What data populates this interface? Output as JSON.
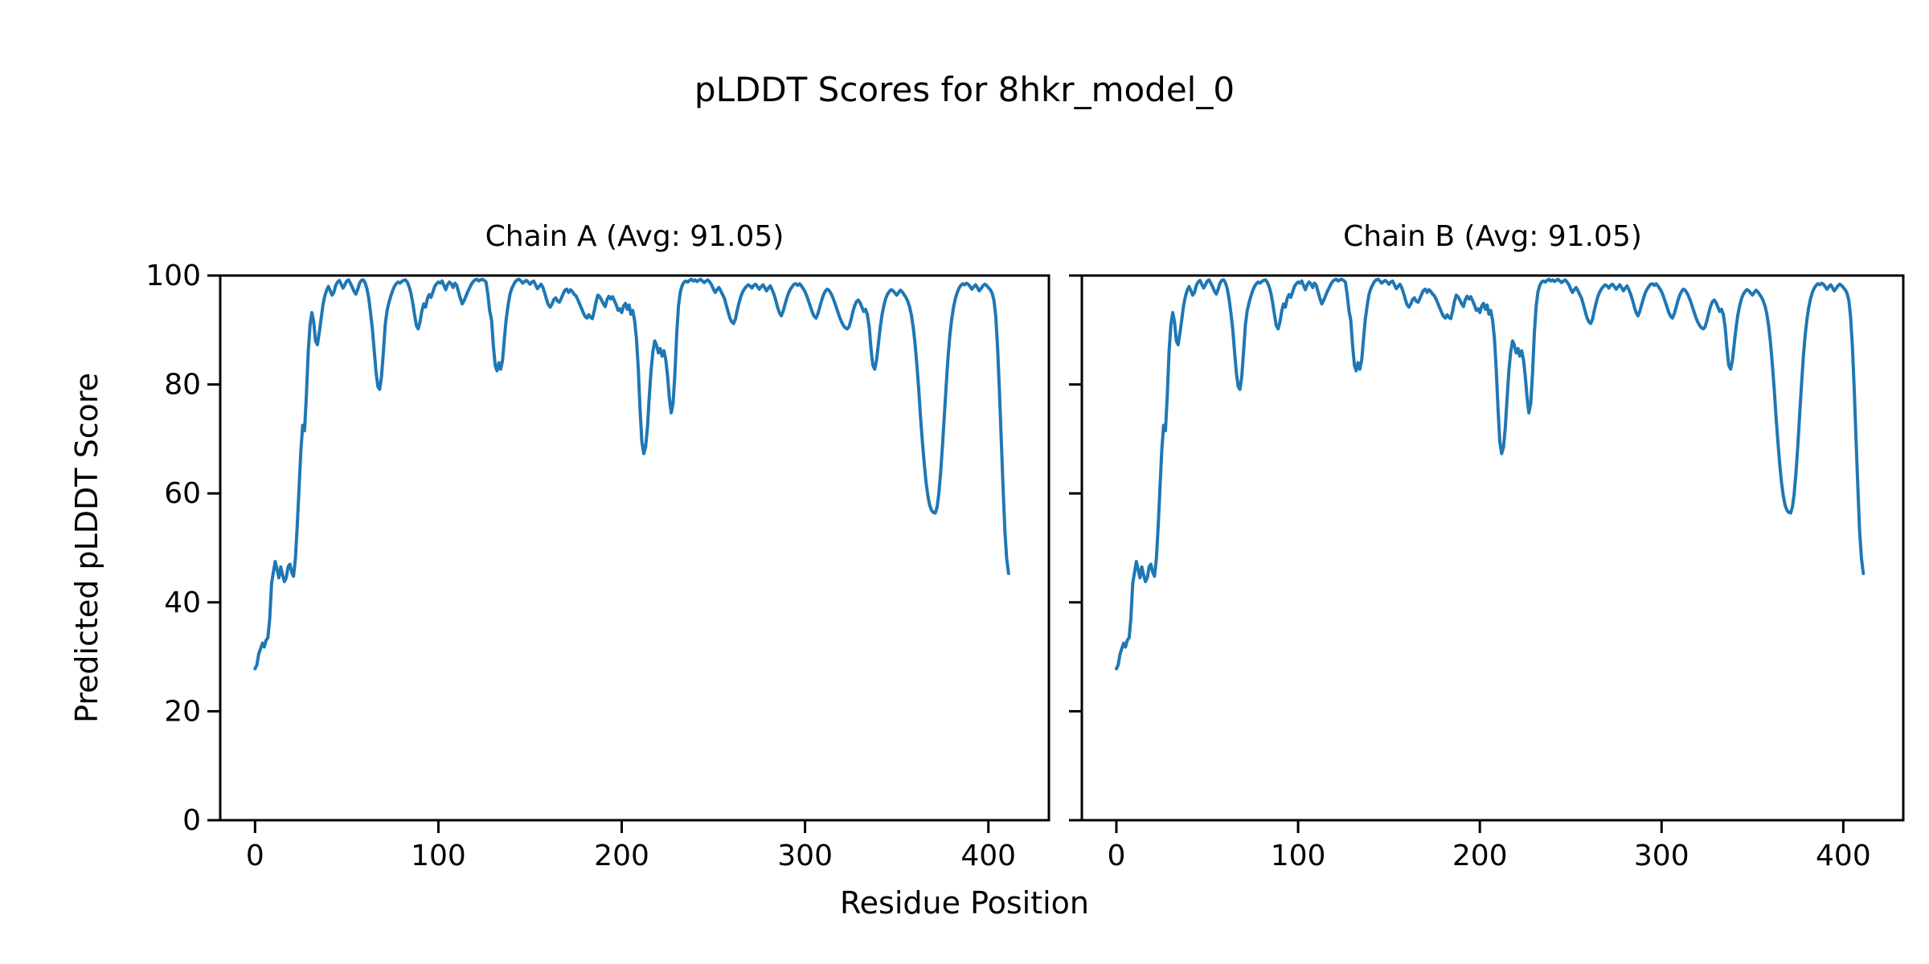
{
  "figure": {
    "background": "#ffffff",
    "text_color": "#000000"
  },
  "chart_data": {
    "type": "line",
    "suptitle": "pLDDT Scores for 8hkr_model_0",
    "xlabel": "Residue Position",
    "ylabel": "Predicted pLDDT Score",
    "line_color": "#1f77b4",
    "grid": false,
    "legend": null,
    "xlim": [
      -19,
      433
    ],
    "ylim": [
      0,
      100
    ],
    "xticks": [
      0,
      100,
      200,
      300,
      400
    ],
    "yticks": [
      0,
      20,
      40,
      60,
      80,
      100
    ],
    "x_start": 0,
    "x_step": 1,
    "subplots": [
      {
        "title": "Chain A (Avg: 91.05)",
        "avg": 91.05
      },
      {
        "title": "Chain B (Avg: 91.05)",
        "avg": 91.05
      }
    ],
    "y": [
      27.8,
      28.5,
      30.5,
      31.5,
      32.5,
      31.8,
      33,
      33.5,
      37,
      43.5,
      45.5,
      47.5,
      46,
      44.5,
      46.5,
      45,
      43.8,
      44.5,
      46.5,
      47,
      45.5,
      44.8,
      48,
      54,
      61,
      68,
      72.5,
      71.5,
      78,
      86,
      91,
      93.2,
      91.5,
      88,
      87.3,
      89.5,
      92,
      94.5,
      96.2,
      97.3,
      98,
      97.2,
      96.4,
      96.9,
      98.2,
      98.8,
      99.1,
      98.4,
      97.7,
      98.3,
      99,
      99.2,
      98.6,
      97.9,
      97.1,
      96.6,
      97.5,
      98.6,
      99.1,
      99.2,
      98.7,
      97.6,
      95.8,
      93.2,
      90.2,
      86.2,
      82.2,
      79.6,
      79.1,
      81.5,
      86,
      91,
      93.6,
      95,
      96.2,
      97.2,
      98,
      98.5,
      98.8,
      98.6,
      98.9,
      99.1,
      99.2,
      98.8,
      98,
      96.8,
      95,
      92.8,
      90.8,
      90.2,
      91.5,
      93.5,
      94.8,
      94.2,
      95.8,
      96.5,
      96,
      97,
      98,
      98.5,
      98.8,
      98.6,
      99,
      98.2,
      97.4,
      98.3,
      98.8,
      98.5,
      97.8,
      98.6,
      98.2,
      97,
      95.8,
      94.8,
      95.4,
      96.2,
      97,
      97.7,
      98.4,
      98.9,
      99.2,
      99.3,
      99,
      99.2,
      99.3,
      99.1,
      98.8,
      96.5,
      93.5,
      91.8,
      87,
      83.5,
      82.5,
      84,
      82.8,
      84.5,
      88.5,
      92,
      94.5,
      96.5,
      97.6,
      98.3,
      98.9,
      99.2,
      99.3,
      99,
      98.6,
      98.9,
      99.1,
      98.8,
      98.4,
      98.8,
      99,
      98.3,
      97.6,
      98,
      98.4,
      97.8,
      96.8,
      95.6,
      94.6,
      94.2,
      94.8,
      95.6,
      95.9,
      95.3,
      95.1,
      95.8,
      96.6,
      97.3,
      97.5,
      96.9,
      97.4,
      97.1,
      96.6,
      96.3,
      95.6,
      94.8,
      94,
      93.2,
      92.5,
      92.2,
      92.8,
      92.3,
      92.1,
      93.5,
      95.2,
      96.4,
      96.1,
      95.5,
      94.8,
      94.3,
      95.6,
      96.2,
      95.7,
      96.1,
      95.4,
      94.6,
      93.6,
      93.9,
      93.2,
      94.4,
      94.9,
      93.8,
      94.6,
      92.9,
      93.6,
      91.8,
      88.5,
      83,
      75.5,
      69.5,
      67.3,
      68.5,
      72,
      77.5,
      82.5,
      86,
      88,
      87.2,
      85.8,
      86.6,
      85.2,
      86.2,
      84.6,
      81.5,
      77.5,
      74.8,
      76.5,
      82,
      89.5,
      94.5,
      97,
      98.2,
      98.8,
      99,
      98.8,
      99.1,
      99.3,
      99,
      99.2,
      98.9,
      99.1,
      99.3,
      99,
      98.7,
      99,
      99.2,
      98.8,
      98.3,
      97.5,
      96.9,
      97.4,
      97.8,
      97.2,
      96.5,
      95.8,
      94.6,
      93.4,
      92.2,
      91.5,
      91.2,
      92,
      93.6,
      95,
      96.2,
      97,
      97.6,
      98,
      98.3,
      98.1,
      97.7,
      98.2,
      98.4,
      98,
      97.5,
      97.9,
      98.3,
      97.8,
      97.2,
      97.7,
      98.1,
      97.4,
      96.6,
      95.5,
      94.2,
      93.2,
      92.6,
      93.4,
      94.6,
      95.8,
      96.8,
      97.5,
      98,
      98.4,
      98.5,
      98.2,
      98.5,
      98.1,
      97.6,
      97,
      96.2,
      95.2,
      94.2,
      93.2,
      92.5,
      92.2,
      93,
      94.2,
      95.4,
      96.4,
      97.1,
      97.5,
      97.3,
      96.8,
      96.1,
      95.2,
      94.2,
      93.2,
      92.2,
      91.4,
      90.8,
      90.4,
      90.2,
      90.6,
      91.8,
      93.2,
      94.4,
      95.2,
      95.5,
      95,
      94.2,
      93.4,
      93.8,
      92.8,
      90.5,
      86.5,
      83.5,
      82.8,
      84.5,
      87.5,
      90.5,
      92.8,
      94.5,
      95.8,
      96.6,
      97.1,
      97.4,
      97.2,
      96.8,
      96.4,
      96.9,
      97.3,
      97,
      96.5,
      96,
      95.3,
      94.3,
      92.8,
      90.5,
      87.5,
      83.5,
      79,
      74,
      69.5,
      65.5,
      62,
      59.5,
      57.8,
      56.9,
      56.5,
      56.4,
      57.5,
      60,
      64,
      69,
      74.5,
      80,
      85,
      89,
      92,
      94.2,
      95.8,
      96.9,
      97.7,
      98.2,
      98.5,
      98.3,
      98.6,
      98.4,
      98,
      97.5,
      97.9,
      98.3,
      97.8,
      97.2,
      97.6,
      98.1,
      98.4,
      98.2,
      97.8,
      97.4,
      96.8,
      95.5,
      92.5,
      87,
      79,
      70,
      61,
      53,
      48,
      45.3
    ]
  }
}
